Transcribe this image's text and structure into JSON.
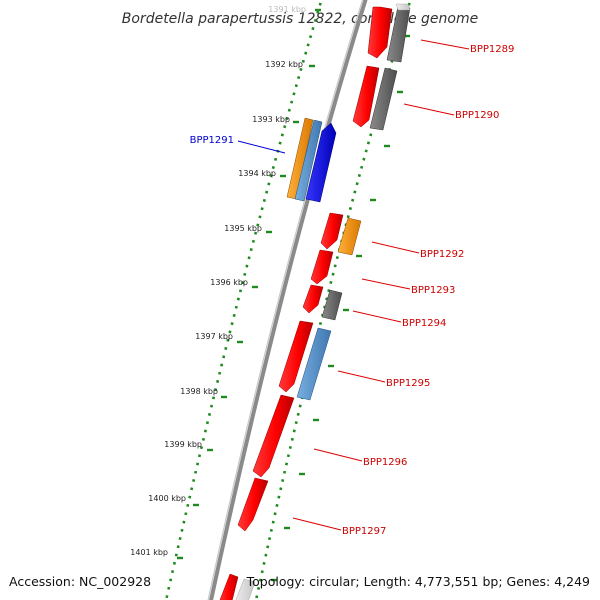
{
  "title": "Bordetella parapertussis 12822, complete genome",
  "accession": "Accession: NC_002928",
  "summary": "Topology: circular; Length: 4,773,551 bp; Genes: 4,249",
  "colors": {
    "forward_strand": "red",
    "reverse_strand": "blue",
    "backbone": "#888888",
    "ticks": "#228b22",
    "label_forward": "#cc0000",
    "label_reverse": "#0000cc"
  },
  "scale_labels": [
    "1391 kbp",
    "1392 kbp",
    "1393 kbp",
    "1394 kbp",
    "1395 kbp",
    "1396 kbp",
    "1397 kbp",
    "1398 kbp",
    "1399 kbp",
    "1400 kbp",
    "1401 kbp"
  ],
  "gene_labels": {
    "bpp1289": "BPP1289",
    "bpp1290": "BPP1290",
    "bpp1291": "BPP1291",
    "bpp1292": "BPP1292",
    "bpp1293": "BPP1293",
    "bpp1294": "BPP1294",
    "bpp1295": "BPP1295",
    "bpp1296": "BPP1296",
    "bpp1297": "BPP1297"
  }
}
